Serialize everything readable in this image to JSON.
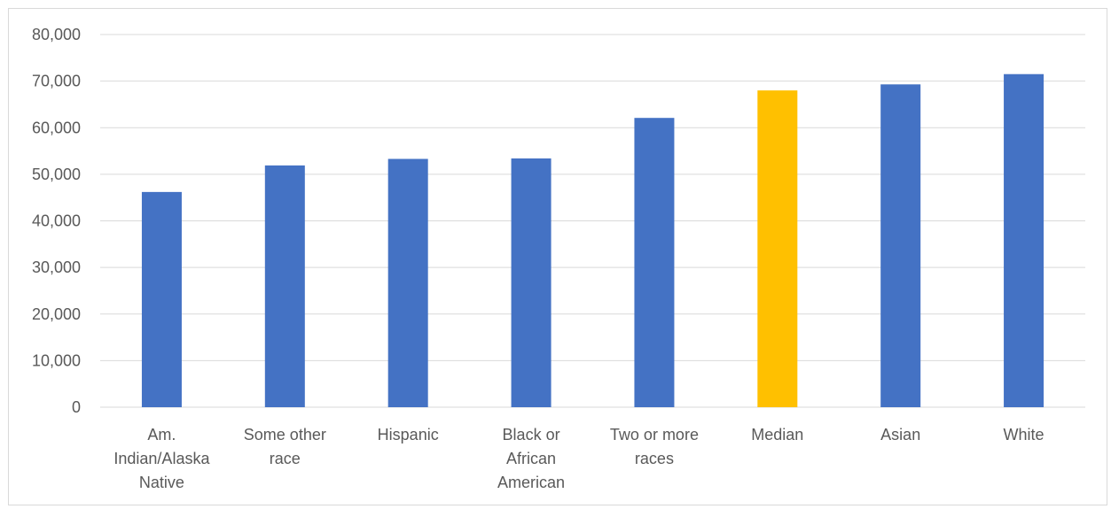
{
  "chart_data": {
    "type": "bar",
    "title": "",
    "xlabel": "",
    "ylabel": "",
    "categories": [
      [
        "Am.",
        "Indian/Alaska",
        "Native"
      ],
      [
        "Some other",
        "race"
      ],
      [
        "Hispanic"
      ],
      [
        "Black or",
        "African",
        "American"
      ],
      [
        "Two or more",
        "races"
      ],
      [
        "Median"
      ],
      [
        "Asian"
      ],
      [
        "White"
      ]
    ],
    "values": [
      46200,
      51900,
      53300,
      53400,
      62100,
      68000,
      69300,
      71500
    ],
    "colors": [
      "#4472c4",
      "#4472c4",
      "#4472c4",
      "#4472c4",
      "#4472c4",
      "#ffc000",
      "#4472c4",
      "#4472c4"
    ],
    "ylim": [
      0,
      80000
    ],
    "yticks": [
      "0",
      "10,000",
      "20,000",
      "30,000",
      "40,000",
      "50,000",
      "60,000",
      "70,000",
      "80,000"
    ],
    "grid": true,
    "legend": "none"
  },
  "chart_colors": {
    "gridline": "#d9d9d9",
    "axis_text": "#595959"
  }
}
